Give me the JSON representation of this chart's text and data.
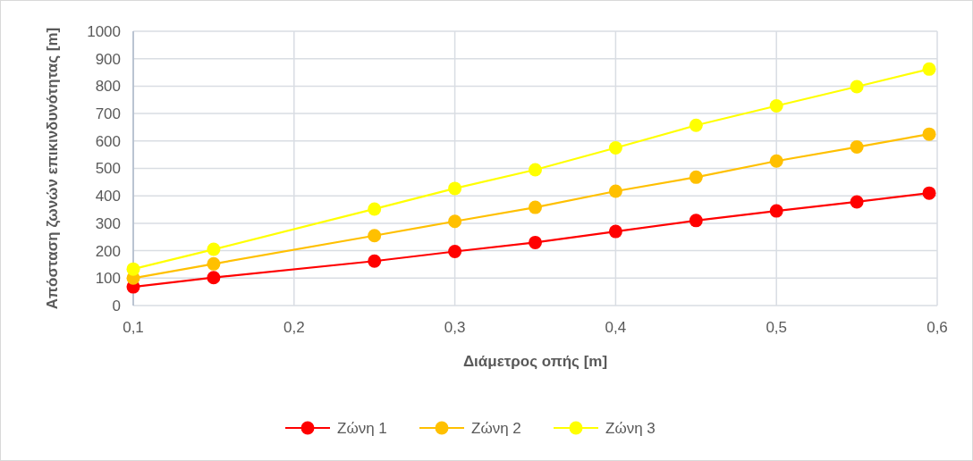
{
  "chart_data": {
    "type": "line",
    "xlabel": "Διάμετρος οπής [m]",
    "ylabel": "Απόσταση ζωνών επικινδυνότητας [m]",
    "x": [
      0.1,
      0.15,
      0.25,
      0.3,
      0.35,
      0.4,
      0.45,
      0.5,
      0.55,
      0.595
    ],
    "series": [
      {
        "name": "Ζώνη 1",
        "color": "#ff0000",
        "values": [
          68,
          102,
          162,
          197,
          230,
          270,
          310,
          345,
          378,
          410
        ]
      },
      {
        "name": "Ζώνη 2",
        "color": "#ffc000",
        "values": [
          100,
          152,
          255,
          307,
          358,
          417,
          468,
          527,
          578,
          625
        ]
      },
      {
        "name": "Ζώνη 3",
        "color": "#ffff00",
        "values": [
          133,
          205,
          352,
          427,
          495,
          575,
          657,
          728,
          798,
          862
        ]
      }
    ],
    "xlim": [
      0.1,
      0.6
    ],
    "xticks": [
      {
        "value": 0.1,
        "label": "0,1"
      },
      {
        "value": 0.2,
        "label": "0,2"
      },
      {
        "value": 0.3,
        "label": "0,3"
      },
      {
        "value": 0.4,
        "label": "0,4"
      },
      {
        "value": 0.5,
        "label": "0,5"
      },
      {
        "value": 0.6,
        "label": "0,6"
      }
    ],
    "ylim": [
      0,
      1000
    ],
    "yticks": [
      0,
      100,
      200,
      300,
      400,
      500,
      600,
      700,
      800,
      900,
      1000
    ],
    "grid": true,
    "legend": "bottom",
    "marker": "circle",
    "line_style": "solid"
  }
}
